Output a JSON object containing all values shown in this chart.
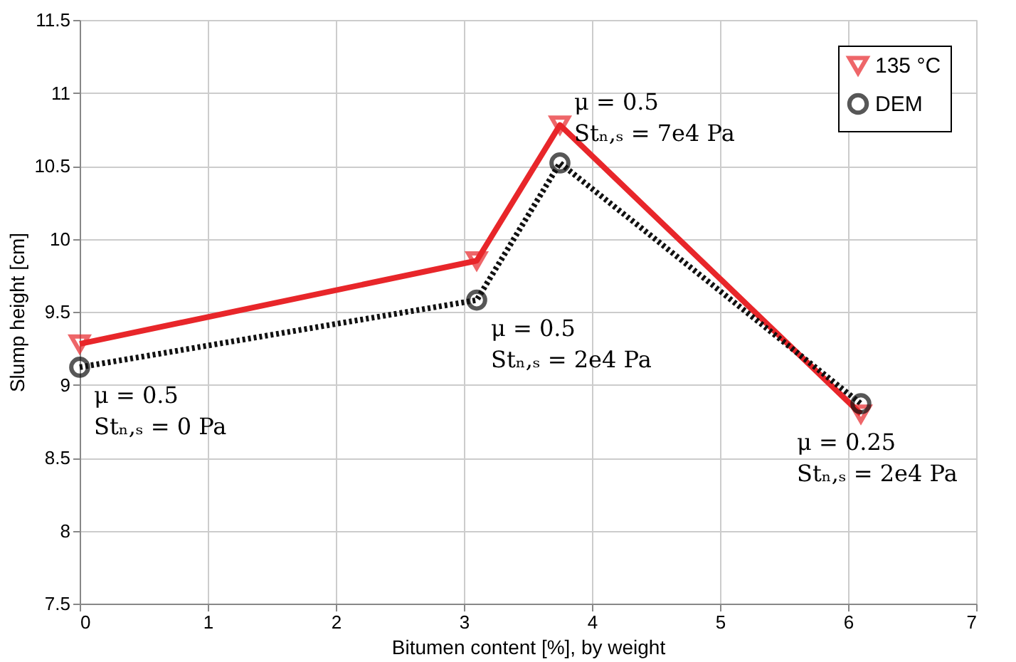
{
  "chart_data": {
    "type": "line",
    "xlabel": "Bitumen content [%], by weight",
    "ylabel": "Slump height [cm]",
    "x": [
      0,
      3.1,
      3.75,
      6.1
    ],
    "series": [
      {
        "name": "135 °C",
        "color": "#e8262a",
        "values": [
          9.28,
          9.85,
          10.78,
          8.8
        ],
        "marker": "triangle",
        "line_style": "solid"
      },
      {
        "name": "DEM",
        "color": "#111111",
        "values": [
          9.12,
          9.58,
          10.52,
          8.87
        ],
        "marker": "circle",
        "line_style": "dotted"
      }
    ],
    "xlim": [
      0,
      7
    ],
    "xticks": [
      0,
      1,
      2,
      3,
      4,
      5,
      6,
      7
    ],
    "ylim": [
      7.5,
      11.5
    ],
    "yticks": [
      7.5,
      8,
      8.5,
      9,
      9.5,
      10,
      10.5,
      11,
      11.5
    ],
    "grid": true,
    "legend": "top right",
    "annotations": [
      {
        "text": "μ = 0.5\nStₙ,ₛ = 0 Pa",
        "x": 0,
        "y": 9.12
      },
      {
        "text": "μ = 0.5\nStₙ,ₛ = 2e4 Pa",
        "x": 3.1,
        "y": 9.58
      },
      {
        "text": "μ = 0.5\nStₙ,ₛ = 7e4 Pa",
        "x": 3.75,
        "y": 10.78
      },
      {
        "text": "μ = 0.25\nStₙ,ₛ = 2e4 Pa",
        "x": 6.1,
        "y": 8.8
      }
    ]
  }
}
